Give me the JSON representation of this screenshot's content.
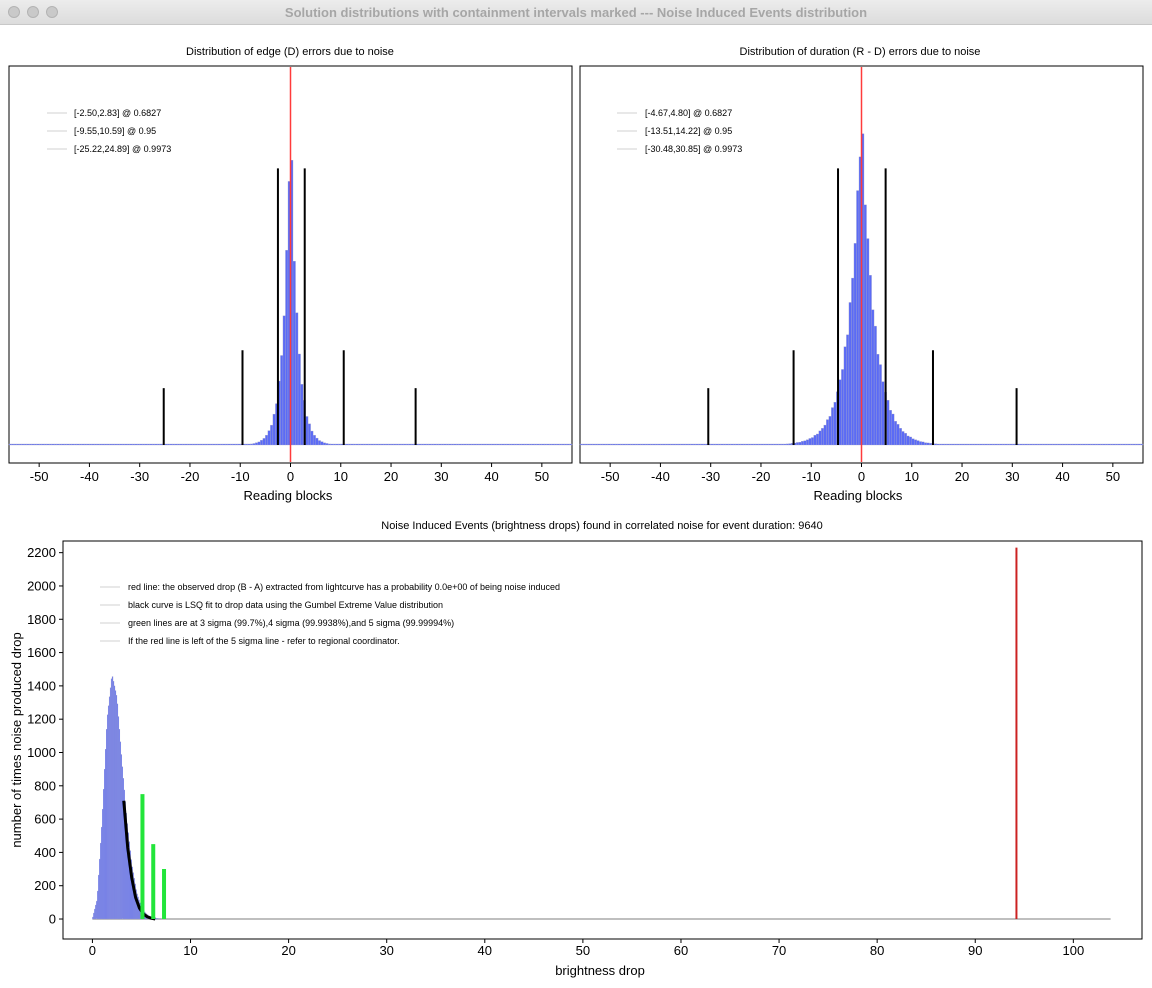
{
  "window": {
    "title": "Solution distributions with containment intervals marked --- Noise Induced Events distribution"
  },
  "colors": {
    "histogram": "#5b6bf5",
    "histogram_edge": "#a9a9c9",
    "observed_line": "#ff3b3b",
    "interval_bars": "#000000",
    "sigma_lines": "#22e53a",
    "fit_curve": "#000000",
    "observed_drop": "#cc2222"
  },
  "chart_data": [
    {
      "type": "bar",
      "title": "Distribution of edge (D) errors due to noise",
      "xlabel": "Reading blocks",
      "ylabel": "",
      "xlim": [
        -56,
        56
      ],
      "xticks": [
        "-50",
        "-40",
        "-30",
        "-20",
        "-10",
        "0",
        "10",
        "20",
        "30",
        "40",
        "50"
      ],
      "distribution": {
        "center": 0,
        "peak": 1.0,
        "scale": 1.35
      },
      "observed_value": 0,
      "legend": [
        "[-2.50,2.83] @ 0.6827",
        "[-9.55,10.59] @ 0.95",
        "[-25.22,24.89] @ 0.9973"
      ],
      "intervals": [
        {
          "lo": -2.5,
          "hi": 2.83,
          "level": 0.6827,
          "height": 0.73
        },
        {
          "lo": -9.55,
          "hi": 10.59,
          "level": 0.95,
          "height": 0.25
        },
        {
          "lo": -25.22,
          "hi": 24.89,
          "level": 0.9973,
          "height": 0.15
        }
      ]
    },
    {
      "type": "bar",
      "title": "Distribution of duration (R - D) errors due to noise",
      "xlabel": "Reading blocks",
      "ylabel": "",
      "xlim": [
        -56,
        56
      ],
      "xticks": [
        "-50",
        "-40",
        "-30",
        "-20",
        "-10",
        "0",
        "10",
        "20",
        "30",
        "40",
        "50"
      ],
      "distribution": {
        "center": 0,
        "peak": 1.0,
        "scale": 2.6
      },
      "observed_value": 0,
      "legend": [
        "[-4.67,4.80] @ 0.6827",
        "[-13.51,14.22] @ 0.95",
        "[-30.48,30.85] @ 0.9973"
      ],
      "intervals": [
        {
          "lo": -4.67,
          "hi": 4.8,
          "level": 0.6827,
          "height": 0.73
        },
        {
          "lo": -13.51,
          "hi": 14.22,
          "level": 0.95,
          "height": 0.25
        },
        {
          "lo": -30.48,
          "hi": 30.85,
          "level": 0.9973,
          "height": 0.15
        }
      ]
    },
    {
      "type": "bar",
      "title": "Noise Induced Events (brightness drops) found in correlated noise for event duration: 9640",
      "xlabel": "brightness drop",
      "ylabel": "number of times noise produced drop",
      "xlim": [
        -3,
        107
      ],
      "ylim": [
        -120,
        2270
      ],
      "xticks": [
        "0",
        "10",
        "20",
        "30",
        "40",
        "50",
        "60",
        "70",
        "80",
        "90",
        "100"
      ],
      "yticks": [
        "0",
        "200",
        "400",
        "600",
        "800",
        "1000",
        "1200",
        "1400",
        "1600",
        "1800",
        "2000",
        "2200"
      ],
      "histogram": {
        "x": [
          0,
          0.5,
          1,
          1.5,
          2,
          2.5,
          3,
          3.5,
          4,
          4.5,
          5,
          5.5,
          6,
          6.5,
          7
        ],
        "counts": [
          0,
          120,
          600,
          1200,
          1470,
          1330,
          950,
          600,
          330,
          160,
          70,
          30,
          12,
          5,
          0
        ]
      },
      "fit_curve": {
        "x": [
          3.2,
          3.6,
          4.0,
          4.4,
          4.8,
          5.2,
          5.6,
          6.0,
          6.4
        ],
        "y": [
          710,
          430,
          250,
          130,
          65,
          30,
          13,
          5,
          0
        ]
      },
      "sigma_lines": [
        {
          "x": 5.1,
          "height": 750
        },
        {
          "x": 6.2,
          "height": 450
        },
        {
          "x": 7.3,
          "height": 300
        }
      ],
      "observed_drop": {
        "x": 94.2,
        "height": 2230
      },
      "baseline_end": 103.8,
      "legend": [
        "red line: the observed drop (B - A) extracted from lightcurve has a probability 0.0e+00 of being noise induced",
        "black curve is LSQ fit to drop data using the Gumbel Extreme Value distribution",
        "green lines are at 3 sigma (99.7%),4 sigma (99.9938%),and 5 sigma (99.99994%)",
        "If the red line is left of the 5 sigma line - refer to regional coordinator."
      ]
    }
  ]
}
